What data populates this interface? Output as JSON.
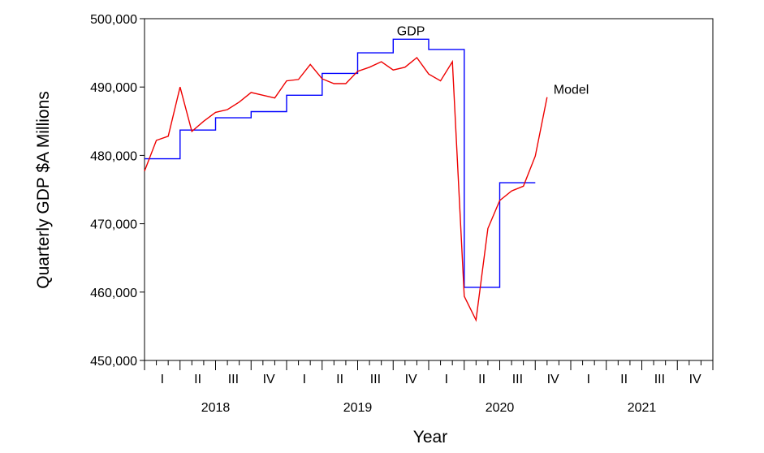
{
  "chart_data": {
    "type": "line",
    "title": "",
    "xlabel": "Year",
    "ylabel": "Quarterly GDP $A Millions",
    "ylim": [
      450000,
      500000
    ],
    "yticks": [
      450000,
      460000,
      470000,
      480000,
      490000,
      500000
    ],
    "ytick_labels": [
      "450,000",
      "460,000",
      "470,000",
      "480,000",
      "490,000",
      "500,000"
    ],
    "xlim": [
      2018.0,
      2022.0
    ],
    "quarter_labels": [
      "I",
      "II",
      "III",
      "IV",
      "I",
      "II",
      "III",
      "IV",
      "I",
      "II",
      "III",
      "IV",
      "I",
      "II",
      "III",
      "IV"
    ],
    "year_labels": [
      "2018",
      "2019",
      "2020",
      "2021"
    ],
    "grid": false,
    "series": [
      {
        "name": "GDP",
        "color": "#0000ff",
        "step": true,
        "points": [
          [
            2018.0,
            479500
          ],
          [
            2018.0833,
            479500
          ],
          [
            2018.1667,
            479500
          ],
          [
            2018.25,
            483700
          ],
          [
            2018.3333,
            483700
          ],
          [
            2018.4167,
            483700
          ],
          [
            2018.5,
            485500
          ],
          [
            2018.5833,
            485500
          ],
          [
            2018.6667,
            485500
          ],
          [
            2018.75,
            486400
          ],
          [
            2018.8333,
            486400
          ],
          [
            2018.9167,
            486400
          ],
          [
            2019.0,
            488800
          ],
          [
            2019.0833,
            488800
          ],
          [
            2019.1667,
            488800
          ],
          [
            2019.25,
            492000
          ],
          [
            2019.3333,
            492000
          ],
          [
            2019.4167,
            492000
          ],
          [
            2019.5,
            495000
          ],
          [
            2019.5833,
            495000
          ],
          [
            2019.6667,
            495000
          ],
          [
            2019.75,
            497000
          ],
          [
            2019.8333,
            497000
          ],
          [
            2019.9167,
            497000
          ],
          [
            2020.0,
            495500
          ],
          [
            2020.0833,
            495500
          ],
          [
            2020.1667,
            495500
          ],
          [
            2020.25,
            460700
          ],
          [
            2020.3333,
            460700
          ],
          [
            2020.4167,
            460700
          ],
          [
            2020.5,
            476000
          ],
          [
            2020.5833,
            476000
          ],
          [
            2020.6667,
            476000
          ]
        ]
      },
      {
        "name": "Model",
        "color": "#ee0000",
        "step": false,
        "points": [
          [
            2018.0,
            477700
          ],
          [
            2018.0833,
            482200
          ],
          [
            2018.1667,
            482800
          ],
          [
            2018.25,
            490000
          ],
          [
            2018.3333,
            483500
          ],
          [
            2018.4167,
            485000
          ],
          [
            2018.5,
            486300
          ],
          [
            2018.5833,
            486700
          ],
          [
            2018.6667,
            487800
          ],
          [
            2018.75,
            489200
          ],
          [
            2018.8333,
            488800
          ],
          [
            2018.9167,
            488400
          ],
          [
            2019.0,
            490900
          ],
          [
            2019.0833,
            491100
          ],
          [
            2019.1667,
            493300
          ],
          [
            2019.25,
            491200
          ],
          [
            2019.3333,
            490500
          ],
          [
            2019.4167,
            490500
          ],
          [
            2019.5,
            492300
          ],
          [
            2019.5833,
            492900
          ],
          [
            2019.6667,
            493700
          ],
          [
            2019.75,
            492500
          ],
          [
            2019.8333,
            492900
          ],
          [
            2019.9167,
            494300
          ],
          [
            2020.0,
            491900
          ],
          [
            2020.0833,
            490900
          ],
          [
            2020.1667,
            493700
          ],
          [
            2020.25,
            459400
          ],
          [
            2020.3333,
            455900
          ],
          [
            2020.4167,
            469300
          ],
          [
            2020.5,
            473400
          ],
          [
            2020.5833,
            474800
          ],
          [
            2020.6667,
            475500
          ],
          [
            2020.75,
            479900
          ],
          [
            2020.8333,
            488500
          ]
        ]
      }
    ],
    "annotations": [
      {
        "text": "GDP",
        "series": "GDP",
        "x": 2019.875,
        "y": 497000
      },
      {
        "text": "Model",
        "series": "Model",
        "x": 2020.833,
        "y": 489000
      }
    ]
  }
}
